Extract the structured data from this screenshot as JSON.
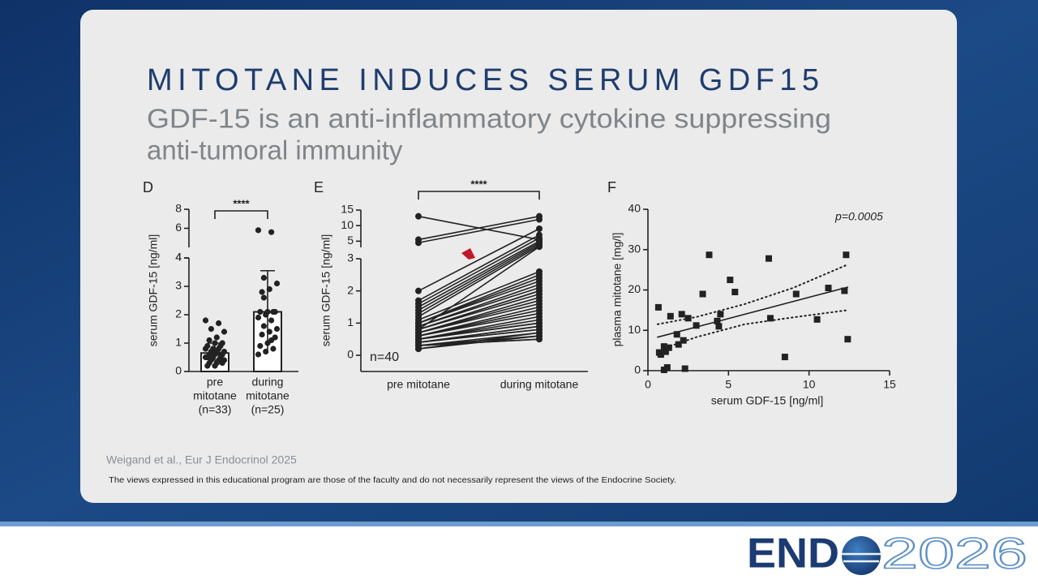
{
  "slide": {
    "title": "MITOTANE INDUCES SERUM GDF15",
    "subtitle": [
      "GDF-15 is an anti-inflammatory cytokine suppressing",
      "anti-tumoral immunity"
    ],
    "citation": "Weigand et al., Eur J Endocrinol 2025",
    "disclaimer": "The views expressed in this educational program are those of the faculty and do not necessarily represent the views of the Endocrine Society.",
    "logo": {
      "left": "END",
      "right": "2026"
    }
  },
  "chart_data": [
    {
      "type": "bar",
      "panel": "D",
      "ylabel": "serum GDF-15 [ng/ml]",
      "categories": [
        [
          "pre",
          "mitotane",
          "(n=33)"
        ],
        [
          "during",
          "mitotane",
          "(n=25)"
        ]
      ],
      "values": [
        0.65,
        2.1
      ],
      "errors": [
        0.35,
        1.45
      ],
      "points": [
        [
          1.8,
          1.7,
          1.5,
          1.4,
          1.2,
          1.1,
          1.0,
          1.0,
          0.9,
          0.9,
          0.8,
          0.8,
          0.8,
          0.7,
          0.7,
          0.7,
          0.6,
          0.6,
          0.6,
          0.5,
          0.5,
          0.5,
          0.5,
          0.4,
          0.4,
          0.4,
          0.3,
          0.3,
          0.3,
          0.2,
          0.2,
          0.6,
          0.7
        ],
        [
          5.8,
          5.6,
          3.3,
          3.1,
          2.9,
          2.8,
          2.1,
          2.1,
          2.1,
          2.1,
          2.0,
          1.9,
          1.8,
          1.6,
          1.5,
          1.4,
          1.3,
          1.2,
          1.0,
          0.9,
          0.8,
          0.7,
          0.6,
          1.1,
          2.6
        ]
      ],
      "color": "#ffffff",
      "ylim": [
        0,
        4
      ],
      "yticks": [
        0,
        1,
        2,
        3,
        4
      ],
      "ylim_upper": [
        4,
        8
      ],
      "yticks_upper": [
        4,
        6,
        8
      ],
      "significance": "****"
    },
    {
      "type": "paired",
      "panel": "E",
      "ylabel": "serum GDF-15 [ng/ml]",
      "categories": [
        "pre mitotane",
        "during mitotane"
      ],
      "values": [
        [
          13,
          5.5,
          4.5,
          2.0,
          1.7,
          1.6,
          1.5,
          1.4,
          1.3,
          1.2,
          1.1,
          1.0,
          1.0,
          0.9,
          0.9,
          0.8,
          0.8,
          0.8,
          0.7,
          0.7,
          0.7,
          0.6,
          0.6,
          0.6,
          0.5,
          0.5,
          0.5,
          0.5,
          0.4,
          0.4,
          0.4,
          0.4,
          0.3,
          0.3,
          0.3,
          0.3,
          0.2,
          0.2,
          0.8,
          1.0
        ],
        [
          5.5,
          13,
          12,
          9,
          7,
          6,
          5,
          4.5,
          4,
          3.5,
          2.6,
          2.5,
          2.3,
          2.2,
          2.1,
          2.0,
          2.0,
          1.9,
          1.8,
          1.7,
          1.6,
          1.5,
          1.4,
          1.3,
          1.2,
          1.1,
          1.0,
          1.0,
          0.9,
          0.9,
          0.8,
          0.8,
          0.7,
          0.6,
          0.5,
          0.5,
          0.6,
          0.7,
          3.2,
          2.4
        ]
      ],
      "color": "#222222",
      "ylim": [
        0,
        3
      ],
      "yticks": [
        0,
        1,
        2,
        3
      ],
      "ylim_upper": [
        3,
        15
      ],
      "yticks_upper": [
        5,
        10,
        15
      ],
      "annotation": "n=40",
      "significance": "****"
    },
    {
      "type": "scatter",
      "panel": "F",
      "xlabel": "serum GDF-15 [ng/ml]",
      "ylabel": "plasma mitotane [mg/l]",
      "x": [
        0.7,
        0.8,
        0.65,
        1.0,
        1.1,
        1.3,
        1.0,
        1.2,
        1.4,
        1.8,
        1.9,
        2.1,
        2.2,
        2.3,
        2.5,
        3.0,
        3.4,
        3.8,
        4.3,
        4.4,
        4.5,
        5.1,
        5.4,
        7.5,
        7.6,
        8.5,
        9.2,
        10.5,
        11.2,
        12.2,
        12.3,
        12.4
      ],
      "values": [
        4.5,
        4,
        15.7,
        6,
        4.7,
        5.7,
        0.2,
        0.8,
        13.5,
        9,
        6.5,
        14,
        7.5,
        0.5,
        13,
        11.2,
        19,
        28.7,
        12.3,
        11,
        14,
        22.5,
        19.5,
        27.8,
        13,
        3.4,
        19,
        12.7,
        20.5,
        19.8,
        28.7,
        7.8
      ],
      "color": "#222222",
      "xlim": [
        0,
        15
      ],
      "xticks": [
        0,
        5,
        10,
        15
      ],
      "ylim": [
        0,
        40
      ],
      "yticks": [
        0,
        10,
        20,
        30,
        40
      ],
      "annotation": "p=0.0005",
      "fit": {
        "x": [
          0.6,
          12.4
        ],
        "values": [
          8.3,
          20.7
        ]
      },
      "ci_upper": {
        "x": [
          0.6,
          3,
          6,
          9,
          12.4
        ],
        "values": [
          11.5,
          13.3,
          16.5,
          20.5,
          26.3
        ]
      },
      "ci_lower": {
        "x": [
          0.6,
          3,
          6,
          9,
          12.4
        ],
        "values": [
          5,
          8.3,
          11.5,
          13.2,
          15
        ]
      }
    }
  ]
}
